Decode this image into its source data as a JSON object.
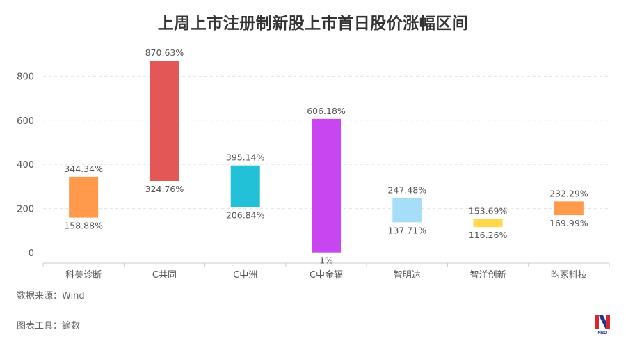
{
  "footer": {
    "source": "数据来源：Wind",
    "tool": "图表工具：镝数",
    "logo_text": "NBD"
  },
  "colors": {
    "bars": [
      "#ff9a4d",
      "#e35757",
      "#22c1d8",
      "#c846f0",
      "#a6def7",
      "#ffd84d",
      "#ff9a4d"
    ],
    "grid": "#e3e3e3",
    "axis": "#cccccc",
    "label": "#555555",
    "logo_red": "#d8282e",
    "logo_blue": "#1a3a8c"
  },
  "chart_data": {
    "type": "bar",
    "subtype": "floating-range",
    "title": "上周上市注册制新股上市首日股价涨幅区间",
    "categories": [
      "科美诊断",
      "C共同",
      "C中洲",
      "C中金辐",
      "智明达",
      "智洋创新",
      "昀冢科技"
    ],
    "series": [
      {
        "values_low": [
          158.88,
          324.76,
          206.84,
          1,
          137.71,
          116.26,
          169.99
        ],
        "values_high": [
          344.34,
          870.63,
          395.14,
          606.18,
          247.48,
          153.69,
          232.29
        ]
      }
    ],
    "labels_low": [
      "158.88%",
      "324.76%",
      "206.84%",
      "1%",
      "137.71%",
      "116.26%",
      "169.99%"
    ],
    "labels_high": [
      "344.34%",
      "870.63%",
      "395.14%",
      "606.18%",
      "247.48%",
      "153.69%",
      "232.29%"
    ],
    "yticks": [
      0,
      200,
      400,
      600,
      800
    ],
    "ylim": [
      0,
      870.63
    ],
    "grid": true,
    "grid_style": "dashed"
  }
}
